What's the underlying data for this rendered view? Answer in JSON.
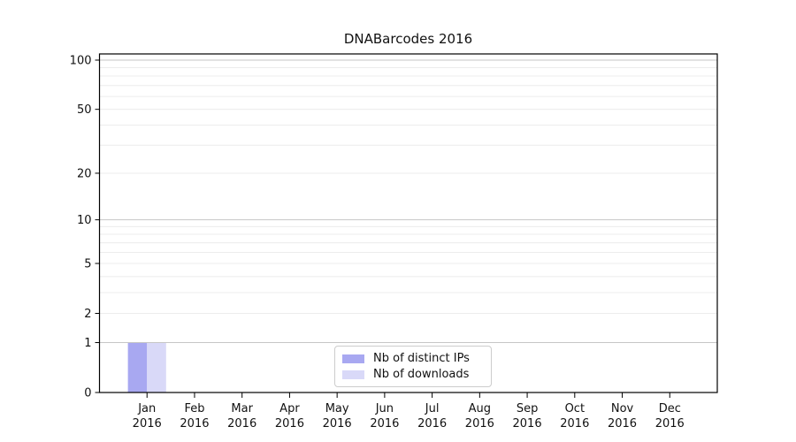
{
  "chart_data": {
    "type": "bar",
    "title": "DNABarcodes 2016",
    "categories": [
      {
        "month": "Jan",
        "year": "2016"
      },
      {
        "month": "Feb",
        "year": "2016"
      },
      {
        "month": "Mar",
        "year": "2016"
      },
      {
        "month": "Apr",
        "year": "2016"
      },
      {
        "month": "May",
        "year": "2016"
      },
      {
        "month": "Jun",
        "year": "2016"
      },
      {
        "month": "Jul",
        "year": "2016"
      },
      {
        "month": "Aug",
        "year": "2016"
      },
      {
        "month": "Sep",
        "year": "2016"
      },
      {
        "month": "Oct",
        "year": "2016"
      },
      {
        "month": "Nov",
        "year": "2016"
      },
      {
        "month": "Dec",
        "year": "2016"
      }
    ],
    "series": [
      {
        "name": "Nb of distinct IPs",
        "color": "#a8a8f1",
        "values": [
          1,
          0,
          0,
          0,
          0,
          0,
          0,
          0,
          0,
          0,
          0,
          0
        ]
      },
      {
        "name": "Nb of downloads",
        "color": "#d9d9f8",
        "values": [
          1,
          0,
          0,
          0,
          0,
          0,
          0,
          0,
          0,
          0,
          0,
          0
        ]
      }
    ],
    "xlabel": "",
    "ylabel": "",
    "y_axis": {
      "scale": "log1p",
      "range": [
        0,
        100
      ],
      "tick_values": [
        0,
        1,
        2,
        5,
        10,
        20,
        50,
        100
      ],
      "tick_labels": [
        "0",
        "1",
        "2",
        "5",
        "10",
        "20",
        "50",
        "100"
      ],
      "major_gridlines": [
        1,
        10,
        100
      ],
      "minor_gridlines": [
        2,
        3,
        4,
        5,
        6,
        7,
        8,
        9,
        20,
        30,
        40,
        50,
        60,
        70,
        80,
        90
      ]
    },
    "grid": "horizontal",
    "legend": {
      "position": "lower center inside",
      "entries": [
        "Nb of distinct IPs",
        "Nb of downloads"
      ]
    }
  },
  "colors": {
    "background": "#ffffff",
    "axis": "#000000",
    "tick_text": "#111111",
    "major_grid": "#c6c6c6",
    "minor_grid": "#ececec",
    "legend_border": "#cccccc"
  }
}
